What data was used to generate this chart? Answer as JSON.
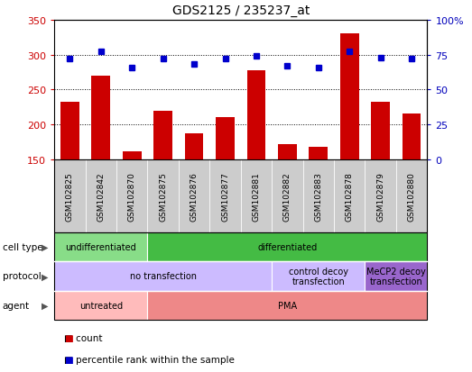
{
  "title": "GDS2125 / 235237_at",
  "samples": [
    "GSM102825",
    "GSM102842",
    "GSM102870",
    "GSM102875",
    "GSM102876",
    "GSM102877",
    "GSM102881",
    "GSM102882",
    "GSM102883",
    "GSM102878",
    "GSM102879",
    "GSM102880"
  ],
  "counts": [
    232,
    270,
    161,
    220,
    187,
    210,
    278,
    172,
    168,
    330,
    232,
    216
  ],
  "percentiles": [
    72,
    77,
    66,
    72,
    68,
    72,
    74,
    67,
    66,
    77,
    73,
    72
  ],
  "ymin": 150,
  "ymax": 350,
  "yticks": [
    150,
    200,
    250,
    300,
    350
  ],
  "y2min": 0,
  "y2max": 100,
  "y2ticks": [
    0,
    25,
    50,
    75,
    100
  ],
  "bar_color": "#cc0000",
  "dot_color": "#0000cc",
  "cell_types": [
    {
      "label": "undifferentiated",
      "start": 0,
      "end": 3,
      "color": "#88dd88"
    },
    {
      "label": "differentiated",
      "start": 3,
      "end": 12,
      "color": "#44bb44"
    }
  ],
  "protocol_types": [
    {
      "label": "no transfection",
      "start": 0,
      "end": 7,
      "color": "#ccbbff"
    },
    {
      "label": "control decoy\ntransfection",
      "start": 7,
      "end": 10,
      "color": "#ccbbff"
    },
    {
      "label": "MeCP2 decoy\ntransfection",
      "start": 10,
      "end": 12,
      "color": "#9966cc"
    }
  ],
  "agent_types": [
    {
      "label": "untreated",
      "start": 0,
      "end": 3,
      "color": "#ffbbbb"
    },
    {
      "label": "PMA",
      "start": 3,
      "end": 12,
      "color": "#ee8888"
    }
  ],
  "row_labels": [
    "cell type",
    "protocol",
    "agent"
  ],
  "legend_count_label": "count",
  "legend_pct_label": "percentile rank within the sample"
}
